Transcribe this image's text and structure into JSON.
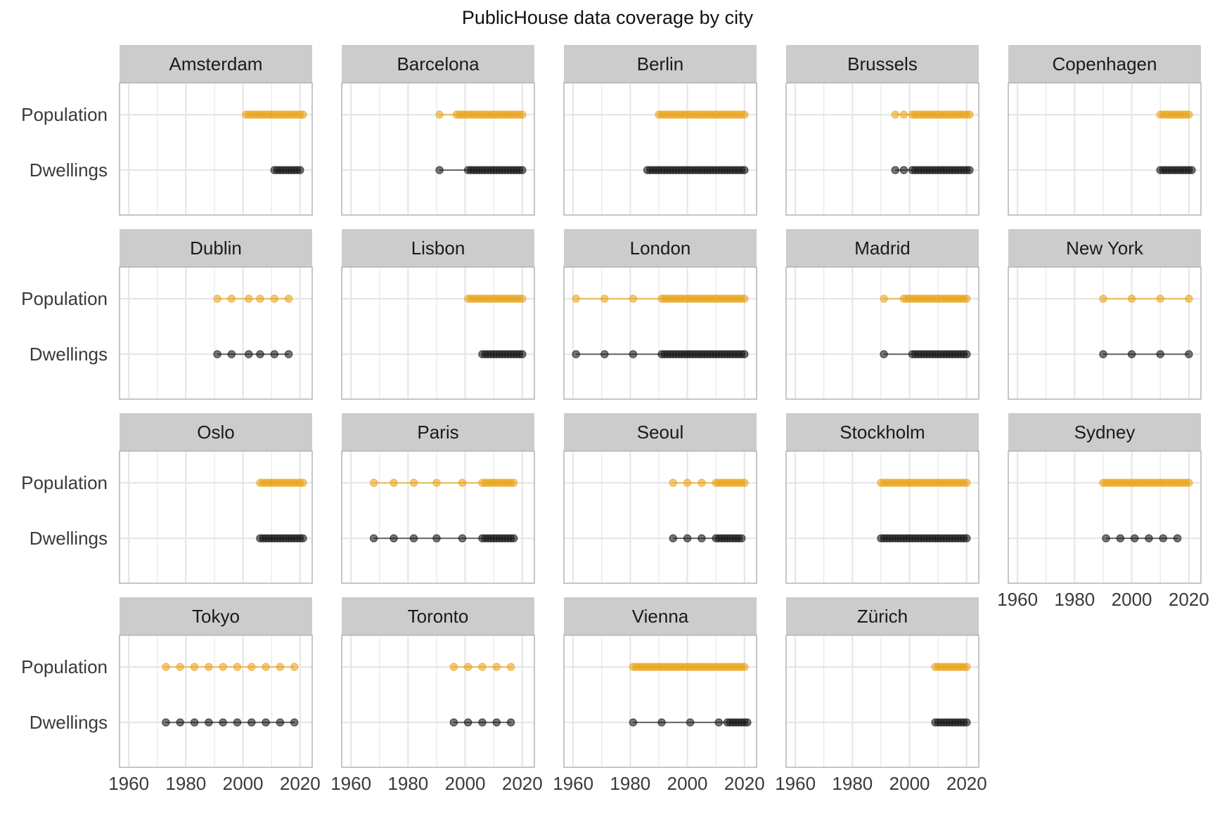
{
  "chart_data": {
    "type": "scatter",
    "title": "PublicHouse data coverage by city",
    "xlabel": "",
    "ylabel": "",
    "xlim": [
      1958,
      2023
    ],
    "x_ticks": [
      1960,
      1980,
      2000,
      2020
    ],
    "y_categories": [
      "Population",
      "Dwellings"
    ],
    "grid": true,
    "legend": "none",
    "colors": {
      "Population": "#E9A520",
      "Dwellings": "#1a1a1a",
      "strip": "#CCCCCC",
      "grid": "#E6E6E6",
      "panel_border": "#B3B3B3"
    },
    "panels": [
      {
        "city": "Amsterdam",
        "population": [
          2001,
          2002,
          2003,
          2004,
          2005,
          2006,
          2007,
          2008,
          2009,
          2010,
          2011,
          2012,
          2013,
          2014,
          2015,
          2016,
          2017,
          2018,
          2019,
          2020,
          2021
        ],
        "dwellings": [
          2011,
          2012,
          2013,
          2014,
          2015,
          2016,
          2017,
          2018,
          2019,
          2020
        ]
      },
      {
        "city": "Barcelona",
        "population": [
          1991,
          1997,
          1998,
          1999,
          2000,
          2001,
          2002,
          2003,
          2004,
          2005,
          2006,
          2007,
          2008,
          2009,
          2010,
          2011,
          2012,
          2013,
          2014,
          2015,
          2016,
          2017,
          2018,
          2019,
          2020
        ],
        "dwellings": [
          1991,
          2001,
          2002,
          2003,
          2004,
          2005,
          2006,
          2007,
          2008,
          2009,
          2010,
          2011,
          2012,
          2013,
          2014,
          2015,
          2016,
          2017,
          2018,
          2019,
          2020
        ]
      },
      {
        "city": "Berlin",
        "population": [
          1990,
          1991,
          1992,
          1993,
          1994,
          1995,
          1996,
          1997,
          1998,
          1999,
          2000,
          2001,
          2002,
          2003,
          2004,
          2005,
          2006,
          2007,
          2008,
          2009,
          2010,
          2011,
          2012,
          2013,
          2014,
          2015,
          2016,
          2017,
          2018,
          2019,
          2020
        ],
        "dwellings": [
          1986,
          1987,
          1988,
          1989,
          1990,
          1991,
          1992,
          1993,
          1994,
          1995,
          1996,
          1997,
          1998,
          1999,
          2000,
          2001,
          2002,
          2003,
          2004,
          2005,
          2006,
          2007,
          2008,
          2009,
          2010,
          2011,
          2012,
          2013,
          2014,
          2015,
          2016,
          2017,
          2018,
          2019,
          2020
        ]
      },
      {
        "city": "Brussels",
        "population": [
          1995,
          1998,
          2001,
          2002,
          2003,
          2004,
          2005,
          2006,
          2007,
          2008,
          2009,
          2010,
          2011,
          2012,
          2013,
          2014,
          2015,
          2016,
          2017,
          2018,
          2019,
          2020,
          2021
        ],
        "dwellings": [
          1995,
          1998,
          2001,
          2002,
          2003,
          2004,
          2005,
          2006,
          2007,
          2008,
          2009,
          2010,
          2011,
          2012,
          2013,
          2014,
          2015,
          2016,
          2017,
          2018,
          2019,
          2020,
          2021
        ]
      },
      {
        "city": "Copenhagen",
        "population": [
          2010,
          2011,
          2012,
          2013,
          2014,
          2015,
          2016,
          2017,
          2018,
          2019,
          2020
        ],
        "dwellings": [
          2010,
          2011,
          2012,
          2013,
          2014,
          2015,
          2016,
          2017,
          2018,
          2019,
          2020,
          2021
        ]
      },
      {
        "city": "Dublin",
        "population": [
          1991,
          1996,
          2002,
          2006,
          2011,
          2016
        ],
        "dwellings": [
          1991,
          1996,
          2002,
          2006,
          2011,
          2016
        ]
      },
      {
        "city": "Lisbon",
        "population": [
          2001,
          2002,
          2003,
          2004,
          2005,
          2006,
          2007,
          2008,
          2009,
          2010,
          2011,
          2012,
          2013,
          2014,
          2015,
          2016,
          2017,
          2018,
          2019,
          2020
        ],
        "dwellings": [
          2006,
          2007,
          2008,
          2009,
          2010,
          2011,
          2012,
          2013,
          2014,
          2015,
          2016,
          2017,
          2018,
          2019,
          2020
        ]
      },
      {
        "city": "London",
        "population": [
          1961,
          1971,
          1981,
          1991,
          1992,
          1993,
          1994,
          1995,
          1996,
          1997,
          1998,
          1999,
          2000,
          2001,
          2002,
          2003,
          2004,
          2005,
          2006,
          2007,
          2008,
          2009,
          2010,
          2011,
          2012,
          2013,
          2014,
          2015,
          2016,
          2017,
          2018,
          2019,
          2020
        ],
        "dwellings": [
          1961,
          1971,
          1981,
          1991,
          1992,
          1993,
          1994,
          1995,
          1996,
          1997,
          1998,
          1999,
          2000,
          2001,
          2002,
          2003,
          2004,
          2005,
          2006,
          2007,
          2008,
          2009,
          2010,
          2011,
          2012,
          2013,
          2014,
          2015,
          2016,
          2017,
          2018,
          2019,
          2020
        ]
      },
      {
        "city": "Madrid",
        "population": [
          1991,
          1998,
          1999,
          2000,
          2001,
          2002,
          2003,
          2004,
          2005,
          2006,
          2007,
          2008,
          2009,
          2010,
          2011,
          2012,
          2013,
          2014,
          2015,
          2016,
          2017,
          2018,
          2019,
          2020
        ],
        "dwellings": [
          1991,
          2001,
          2002,
          2003,
          2004,
          2005,
          2006,
          2007,
          2008,
          2009,
          2010,
          2011,
          2012,
          2013,
          2014,
          2015,
          2016,
          2017,
          2018,
          2019,
          2020
        ]
      },
      {
        "city": "New York",
        "population": [
          1990,
          2000,
          2010,
          2020
        ],
        "dwellings": [
          1990,
          2000,
          2010,
          2020
        ]
      },
      {
        "city": "Oslo",
        "population": [
          2006,
          2007,
          2008,
          2009,
          2010,
          2011,
          2012,
          2013,
          2014,
          2015,
          2016,
          2017,
          2018,
          2019,
          2020,
          2021
        ],
        "dwellings": [
          2006,
          2007,
          2008,
          2009,
          2010,
          2011,
          2012,
          2013,
          2014,
          2015,
          2016,
          2017,
          2018,
          2019,
          2020,
          2021
        ]
      },
      {
        "city": "Paris",
        "population": [
          1968,
          1975,
          1982,
          1990,
          1999,
          2006,
          2007,
          2008,
          2009,
          2010,
          2011,
          2012,
          2013,
          2014,
          2015,
          2016,
          2017
        ],
        "dwellings": [
          1968,
          1975,
          1982,
          1990,
          1999,
          2006,
          2007,
          2008,
          2009,
          2010,
          2011,
          2012,
          2013,
          2014,
          2015,
          2016,
          2017
        ]
      },
      {
        "city": "Seoul",
        "population": [
          1995,
          2000,
          2005,
          2010,
          2011,
          2012,
          2013,
          2014,
          2015,
          2016,
          2017,
          2018,
          2019,
          2020
        ],
        "dwellings": [
          1995,
          2000,
          2005,
          2010,
          2011,
          2012,
          2013,
          2014,
          2015,
          2016,
          2017,
          2018,
          2019
        ]
      },
      {
        "city": "Stockholm",
        "population": [
          1990,
          1991,
          1992,
          1993,
          1994,
          1995,
          1996,
          1997,
          1998,
          1999,
          2000,
          2001,
          2002,
          2003,
          2004,
          2005,
          2006,
          2007,
          2008,
          2009,
          2010,
          2011,
          2012,
          2013,
          2014,
          2015,
          2016,
          2017,
          2018,
          2019,
          2020
        ],
        "dwellings": [
          1990,
          1991,
          1992,
          1993,
          1994,
          1995,
          1996,
          1997,
          1998,
          1999,
          2000,
          2001,
          2002,
          2003,
          2004,
          2005,
          2006,
          2007,
          2008,
          2009,
          2010,
          2011,
          2012,
          2013,
          2014,
          2015,
          2016,
          2017,
          2018,
          2019,
          2020
        ]
      },
      {
        "city": "Sydney",
        "population": [
          1990,
          1991,
          1992,
          1993,
          1994,
          1995,
          1996,
          1997,
          1998,
          1999,
          2000,
          2001,
          2002,
          2003,
          2004,
          2005,
          2006,
          2007,
          2008,
          2009,
          2010,
          2011,
          2012,
          2013,
          2014,
          2015,
          2016,
          2017,
          2018,
          2019,
          2020
        ],
        "dwellings": [
          1991,
          1996,
          2001,
          2006,
          2011,
          2016
        ]
      },
      {
        "city": "Tokyo",
        "population": [
          1973,
          1978,
          1983,
          1988,
          1993,
          1998,
          2003,
          2008,
          2013,
          2018
        ],
        "dwellings": [
          1973,
          1978,
          1983,
          1988,
          1993,
          1998,
          2003,
          2008,
          2013,
          2018
        ]
      },
      {
        "city": "Toronto",
        "population": [
          1996,
          2001,
          2006,
          2011,
          2016
        ],
        "dwellings": [
          1996,
          2001,
          2006,
          2011,
          2016
        ]
      },
      {
        "city": "Vienna",
        "population": [
          1981,
          1982,
          1983,
          1984,
          1985,
          1986,
          1987,
          1988,
          1989,
          1990,
          1991,
          1992,
          1993,
          1994,
          1995,
          1996,
          1997,
          1998,
          1999,
          2000,
          2001,
          2002,
          2003,
          2004,
          2005,
          2006,
          2007,
          2008,
          2009,
          2010,
          2011,
          2012,
          2013,
          2014,
          2015,
          2016,
          2017,
          2018,
          2019,
          2020
        ],
        "dwellings": [
          1981,
          1991,
          2001,
          2011,
          2014,
          2015,
          2016,
          2017,
          2018,
          2019,
          2020,
          2021
        ]
      },
      {
        "city": "Zürich",
        "population": [
          2009,
          2010,
          2011,
          2012,
          2013,
          2014,
          2015,
          2016,
          2017,
          2018,
          2019,
          2020
        ],
        "dwellings": [
          2009,
          2010,
          2011,
          2012,
          2013,
          2014,
          2015,
          2016,
          2017,
          2018,
          2019,
          2020
        ]
      }
    ]
  }
}
